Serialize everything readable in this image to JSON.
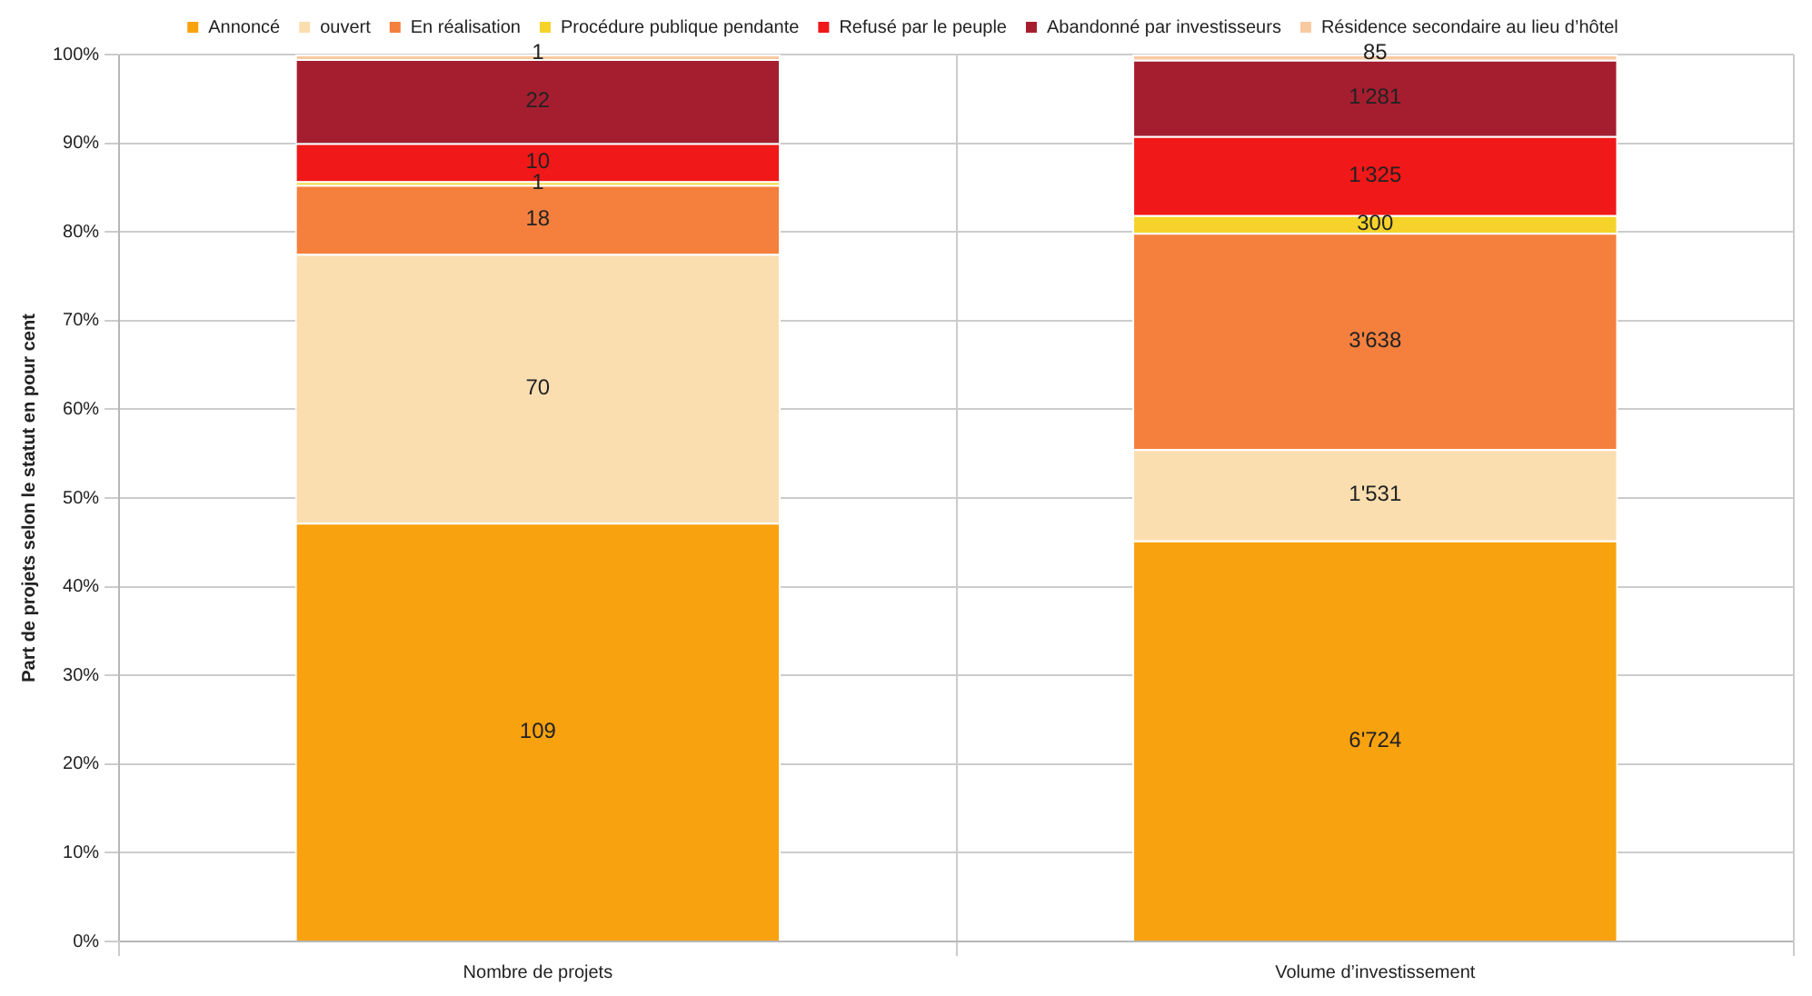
{
  "chart_data": {
    "type": "bar",
    "stacked": true,
    "ylabel": "Part de projets selon le statut en pour cent",
    "categories": [
      "Nombre de projets",
      "Volume d’investissement"
    ],
    "series": [
      {
        "name": "Annoncé",
        "color": "#f9a20f",
        "values": [
          47.2,
          45.2
        ]
      },
      {
        "name": "ouvert",
        "color": "#fbdeb0",
        "values": [
          30.3,
          10.3
        ]
      },
      {
        "name": "En réalisation",
        "color": "#f5803e",
        "values": [
          7.8,
          24.4
        ]
      },
      {
        "name": "Procédure publique pendante",
        "color": "#f5d32a",
        "values": [
          0.4,
          2.0
        ]
      },
      {
        "name": "Refusé par le peuple",
        "color": "#f01818",
        "values": [
          4.3,
          8.9
        ]
      },
      {
        "name": "Abandonné par investisseurs",
        "color": "#a51e30",
        "values": [
          9.5,
          8.6
        ]
      },
      {
        "name": "Résidence secondaire au lieu d’hôtel",
        "color": "#f9c9a0",
        "values": [
          0.5,
          0.6
        ]
      }
    ],
    "annotations": [
      "109",
      "70",
      "18",
      "1",
      "10",
      "22",
      "1",
      "6'724",
      "1'531",
      "3'638",
      "300",
      "1'325",
      "1'281",
      "85"
    ],
    "ylim": [
      0,
      100
    ],
    "yticks": [
      {
        "value": 0,
        "label": "0%"
      },
      {
        "value": 10,
        "label": "10%"
      },
      {
        "value": 20,
        "label": "20%"
      },
      {
        "value": 30,
        "label": "30%"
      },
      {
        "value": 40,
        "label": "40%"
      },
      {
        "value": 50,
        "label": "50%"
      },
      {
        "value": 60,
        "label": "60%"
      },
      {
        "value": 70,
        "label": "70%"
      },
      {
        "value": 80,
        "label": "80%"
      },
      {
        "value": 90,
        "label": "90%"
      },
      {
        "value": 100,
        "label": "100%"
      }
    ],
    "grid": true,
    "legend": "top"
  }
}
